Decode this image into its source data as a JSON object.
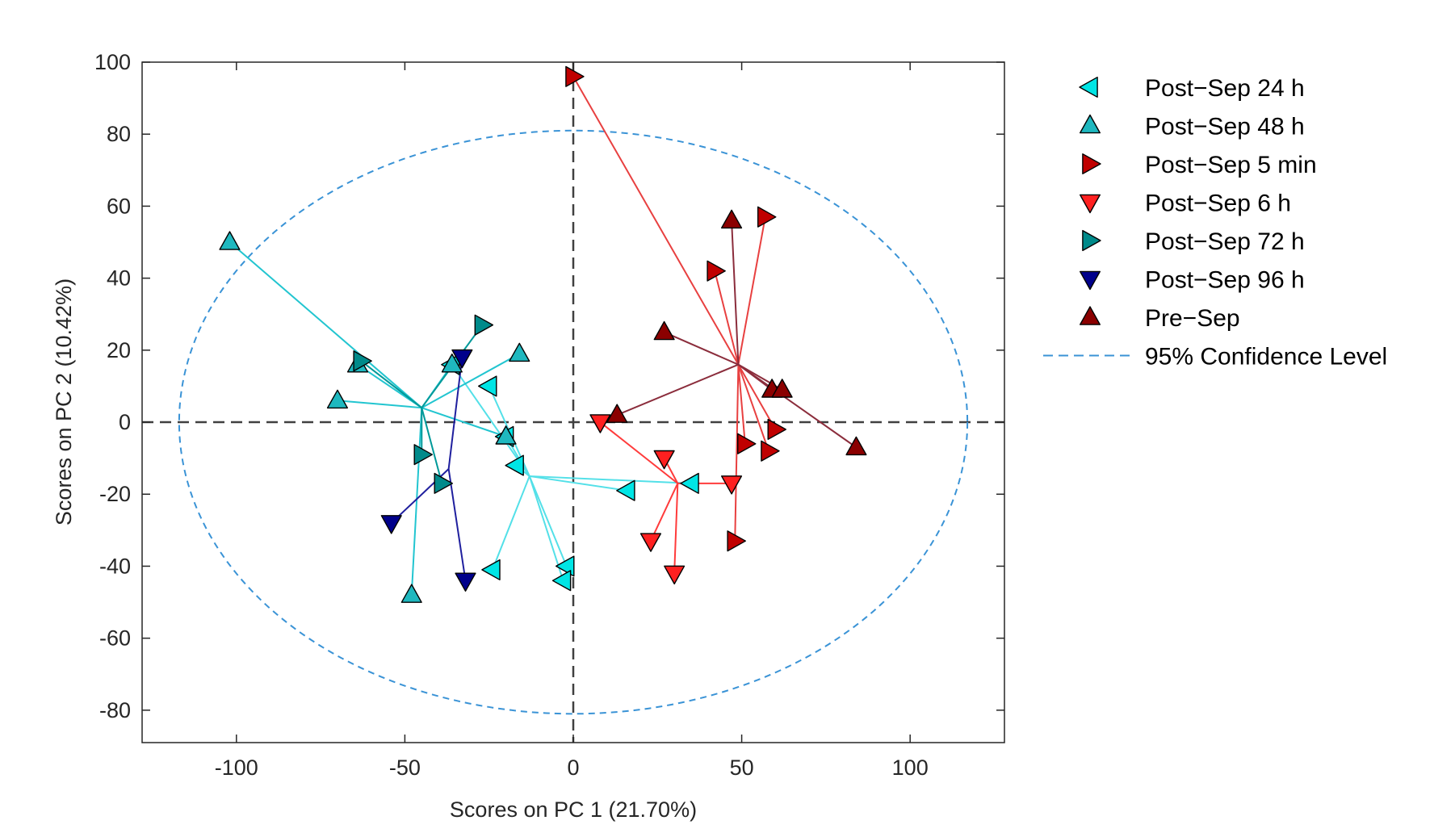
{
  "chart_data": {
    "type": "scatter",
    "title": "",
    "xlabel": "Scores on PC 1 (21.70%)",
    "ylabel": "Scores on PC 2 (10.42%)",
    "xlim": [
      -128,
      128
    ],
    "ylim": [
      -89,
      100
    ],
    "xticks": [
      -100,
      -50,
      0,
      50,
      100
    ],
    "yticks": [
      -80,
      -60,
      -40,
      -20,
      0,
      20,
      40,
      60,
      80,
      100
    ],
    "xtick_labels": [
      "-100",
      "-50",
      "0",
      "50",
      "100"
    ],
    "ytick_labels": [
      "-80",
      "-60",
      "-40",
      "-20",
      "0",
      "20",
      "40",
      "60",
      "80",
      "100"
    ],
    "reference_lines": {
      "x": 0,
      "y": 0,
      "style": "dashed",
      "color": "#404040"
    },
    "confidence_ellipse": {
      "label": "95% Confidence Level",
      "center": [
        0,
        0
      ],
      "rx": 117,
      "ry": 81,
      "color": "#3a93d6"
    },
    "legend_location": "outside-right",
    "series": [
      {
        "name": "Post−Sep 24 h",
        "marker": "triangle-left",
        "fill": "#00e5e5",
        "line": "#53e0e8",
        "centroid": [
          -13,
          -15
        ],
        "points": [
          [
            -25,
            10
          ],
          [
            -17,
            -12
          ],
          [
            16,
            -19
          ],
          [
            -24,
            -41
          ],
          [
            -2,
            -40
          ],
          [
            -3,
            -44
          ],
          [
            -20,
            -4
          ],
          [
            -36,
            16
          ],
          [
            35,
            -17
          ]
        ]
      },
      {
        "name": "Post−Sep 48 h",
        "marker": "triangle-up",
        "fill": "#1fb8bf",
        "line": "#22c5d0",
        "centroid": [
          -45,
          4
        ],
        "points": [
          [
            -102,
            50
          ],
          [
            -70,
            6
          ],
          [
            -64,
            16
          ],
          [
            -48,
            -48
          ],
          [
            -36,
            16
          ],
          [
            -16,
            19
          ],
          [
            -20,
            -4
          ]
        ]
      },
      {
        "name": "Post−Sep 5 min",
        "marker": "triangle-right",
        "fill": "#c00000",
        "line": "#e84040",
        "centroid": [
          49,
          16
        ],
        "points": [
          [
            0,
            96
          ],
          [
            57,
            57
          ],
          [
            42,
            42
          ],
          [
            60,
            -2
          ],
          [
            58,
            -8
          ],
          [
            51,
            -6
          ],
          [
            48,
            -33
          ]
        ]
      },
      {
        "name": "Post−Sep 6 h",
        "marker": "triangle-down",
        "fill": "#ff2020",
        "line": "#ff3b3b",
        "centroid": [
          31,
          -17
        ],
        "points": [
          [
            8,
            0
          ],
          [
            27,
            -10
          ],
          [
            23,
            -33
          ],
          [
            30,
            -42
          ],
          [
            47,
            -17
          ]
        ]
      },
      {
        "name": "Post−Sep 72 h",
        "marker": "triangle-right",
        "fill": "#008a8a",
        "line": "#009999",
        "centroid": [
          -45,
          4
        ],
        "points": [
          [
            -63,
            17
          ],
          [
            -27,
            27
          ],
          [
            -45,
            -9
          ],
          [
            -39,
            -17
          ]
        ]
      },
      {
        "name": "Post−Sep 96 h",
        "marker": "triangle-down",
        "fill": "#00008b",
        "line": "#1f1f9e",
        "centroid": [
          -37,
          -13
        ],
        "points": [
          [
            -33,
            18
          ],
          [
            -54,
            -28
          ],
          [
            -32,
            -44
          ]
        ]
      },
      {
        "name": "Pre−Sep",
        "marker": "triangle-up",
        "fill": "#8b0000",
        "line": "#8b2d3c",
        "centroid": [
          49,
          16
        ],
        "points": [
          [
            27,
            25
          ],
          [
            13,
            2
          ],
          [
            47,
            56
          ],
          [
            59,
            9
          ],
          [
            62,
            9
          ],
          [
            84,
            -7
          ]
        ]
      }
    ]
  }
}
